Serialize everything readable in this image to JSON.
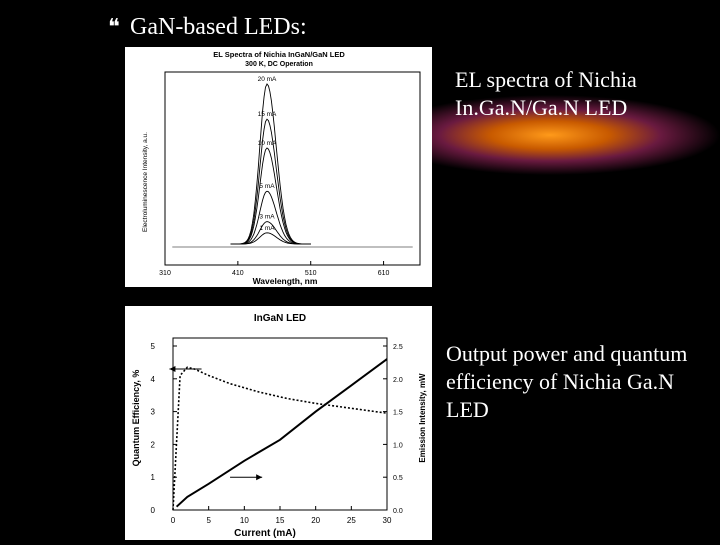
{
  "slide": {
    "bullet_icon": "bullet-icon",
    "heading": "GaN-based LEDs:",
    "caption1_line1": "EL spectra of Nichia",
    "caption1_line2": "In.Ga.N/Ga.N LED",
    "caption2": "Output power and quantum efficiency of Nichia Ga.N LED"
  },
  "chart_data": [
    {
      "type": "line",
      "title": "EL Spectra of Nichia InGaN/GaN LED",
      "subtitle": "300 K, DC Operation",
      "xlabel": "Wavelength, nm",
      "ylabel": "Electroluminescence Intensity, a.u.",
      "xlim": [
        310,
        660
      ],
      "x_ticks": [
        "310",
        "410",
        "510",
        "610"
      ],
      "peak_nm": 450,
      "series": [
        {
          "name": "1 mA",
          "peak": 0.07
        },
        {
          "name": "3 mA",
          "peak": 0.14
        },
        {
          "name": "5 mA",
          "peak": 0.33
        },
        {
          "name": "10 mA",
          "peak": 0.6
        },
        {
          "name": "15 mA",
          "peak": 0.78
        },
        {
          "name": "20 mA",
          "peak": 1.0
        }
      ]
    },
    {
      "type": "line",
      "title": "InGaN LED",
      "xlabel": "Current (mA)",
      "ylabel_left": "Quantum Efficiency, %",
      "ylabel_right": "Emission Intensity, mW",
      "x_ticks": [
        "0",
        "5",
        "10",
        "15",
        "20",
        "25",
        "30"
      ],
      "y_left_ticks": [
        "0",
        "1",
        "2",
        "3",
        "4",
        "5"
      ],
      "y_right_ticks": [
        "0.0",
        "0.5",
        "1.0",
        "1.5",
        "2.0",
        "2.5"
      ],
      "xlim": [
        0,
        30
      ],
      "ylim_left": [
        0,
        5
      ],
      "ylim_right": [
        0,
        2.5
      ],
      "series": [
        {
          "axis": "left",
          "style": "dotted",
          "x": [
            0,
            1,
            2,
            3,
            5,
            8,
            12,
            16,
            20,
            25,
            30
          ],
          "y": [
            0,
            4.1,
            4.35,
            4.3,
            4.1,
            3.85,
            3.6,
            3.4,
            3.25,
            3.1,
            2.95
          ]
        },
        {
          "axis": "right",
          "style": "solid",
          "x": [
            0.5,
            2,
            5,
            10,
            15,
            20,
            25,
            30
          ],
          "y": [
            0.05,
            0.2,
            0.4,
            0.75,
            1.07,
            1.5,
            1.9,
            2.3
          ]
        }
      ]
    }
  ]
}
